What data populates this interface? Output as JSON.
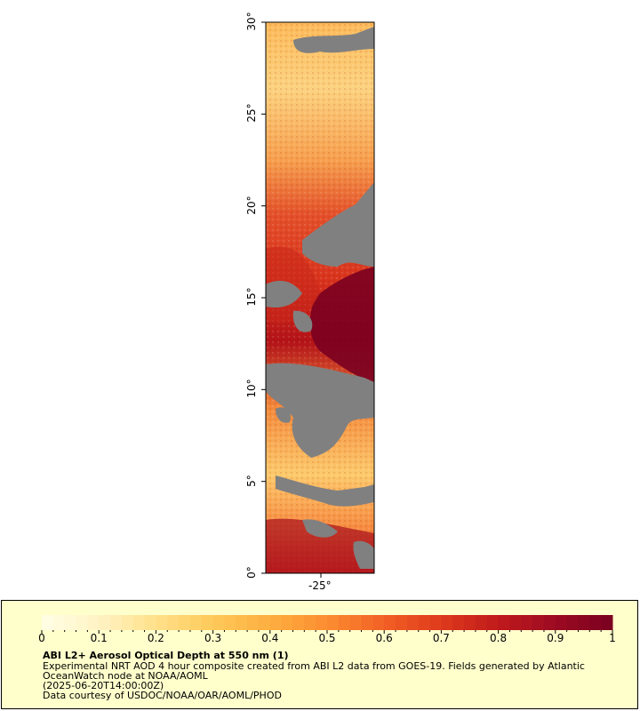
{
  "map": {
    "lat_ticks": [
      {
        "value": 30,
        "label": "30°"
      },
      {
        "value": 25,
        "label": "25°"
      },
      {
        "value": 20,
        "label": "20°"
      },
      {
        "value": 15,
        "label": "15°"
      },
      {
        "value": 10,
        "label": "10°"
      },
      {
        "value": 5,
        "label": "5°"
      },
      {
        "value": 0,
        "label": "0°"
      }
    ],
    "lon_ticks": [
      {
        "value": -25,
        "label": "-25°"
      }
    ],
    "no_data_color": "#808080"
  },
  "colorbar": {
    "min": 0,
    "max": 1,
    "labels": [
      "0",
      "0.1",
      "0.2",
      "0.3",
      "0.4",
      "0.5",
      "0.6",
      "0.7",
      "0.8",
      "0.9",
      "1"
    ],
    "colors": [
      "#ffffe5",
      "#fff3c4",
      "#ffe08a",
      "#fec95a",
      "#fdae3f",
      "#fc8d31",
      "#f26025",
      "#de3a1c",
      "#c01a1c",
      "#9c0b22",
      "#7a0020"
    ]
  },
  "caption": {
    "title": "ABI L2+ Aerosol Optical Depth at 550 nm (1)",
    "line1": "Experimental NRT AOD 4 hour composite created from ABI L2 data from GOES-19. Fields generated by Atlantic",
    "line2": "OceanWatch node at NOAA/AOML",
    "line3": "(2025-06-20T14:00:00Z)",
    "line4": "Data courtesy of USDOC/NOAA/OAR/AOML/PHOD"
  }
}
